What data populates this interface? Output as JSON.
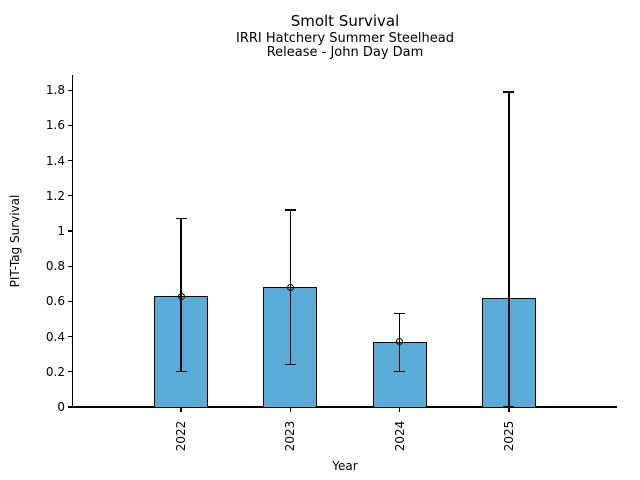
{
  "chart_data": {
    "type": "bar",
    "title": "Smolt Survival",
    "subtitle_lines": [
      "IRRI Hatchery Summer Steelhead",
      "Release - John Day Dam"
    ],
    "xlabel": "Year",
    "ylabel": "PIT-Tag Survival",
    "categories": [
      "2022",
      "2023",
      "2024",
      "2025"
    ],
    "values": [
      0.63,
      0.68,
      0.37,
      0.62
    ],
    "error_low": [
      0.2,
      0.24,
      0.2,
      0.0
    ],
    "error_high": [
      1.07,
      1.12,
      0.53,
      1.79
    ],
    "point_estimates": [
      0.63,
      0.68,
      0.37,
      null
    ],
    "yticks": [
      0,
      0.2,
      0.4,
      0.6,
      0.8,
      1.0,
      1.2,
      1.4,
      1.6,
      1.8
    ],
    "ytick_labels": [
      "0",
      "0.2",
      "0.4",
      "0.6",
      "0.8",
      "1",
      "1.2",
      "1.4",
      "1.6",
      "1.8"
    ],
    "ylim": [
      0,
      1.885
    ],
    "grid": false,
    "legend_position": "none",
    "bar_color": "#5aacd8",
    "edge_color": "#000000",
    "background_color": "#ffffff"
  }
}
